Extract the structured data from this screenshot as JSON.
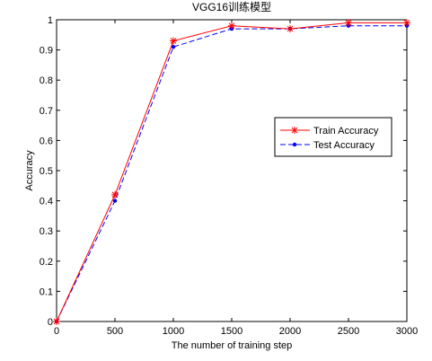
{
  "chart_data": {
    "type": "line",
    "title": "VGG16训练模型",
    "xlabel": "The number of training step",
    "ylabel": "Accuracy",
    "x": [
      0,
      500,
      1000,
      1500,
      2000,
      2500,
      3000
    ],
    "xlim": [
      0,
      3000
    ],
    "ylim": [
      0,
      1
    ],
    "xticks": [
      "0",
      "500",
      "1000",
      "1500",
      "2000",
      "2500",
      "3000"
    ],
    "yticks": [
      "0",
      "0.1",
      "0.2",
      "0.3",
      "0.4",
      "0.5",
      "0.6",
      "0.7",
      "0.8",
      "0.9",
      "1"
    ],
    "grid": false,
    "legend_position": "right",
    "series": [
      {
        "name": "Train Accuracy",
        "values": [
          0,
          0.42,
          0.93,
          0.98,
          0.97,
          0.99,
          0.99
        ],
        "color": "#ff0000",
        "line_style": "solid",
        "marker": "asterisk"
      },
      {
        "name": "Test Accuracy",
        "values": [
          0,
          0.4,
          0.91,
          0.97,
          0.97,
          0.98,
          0.98
        ],
        "color": "#0000ff",
        "line_style": "dashed",
        "marker": "dot"
      }
    ]
  }
}
